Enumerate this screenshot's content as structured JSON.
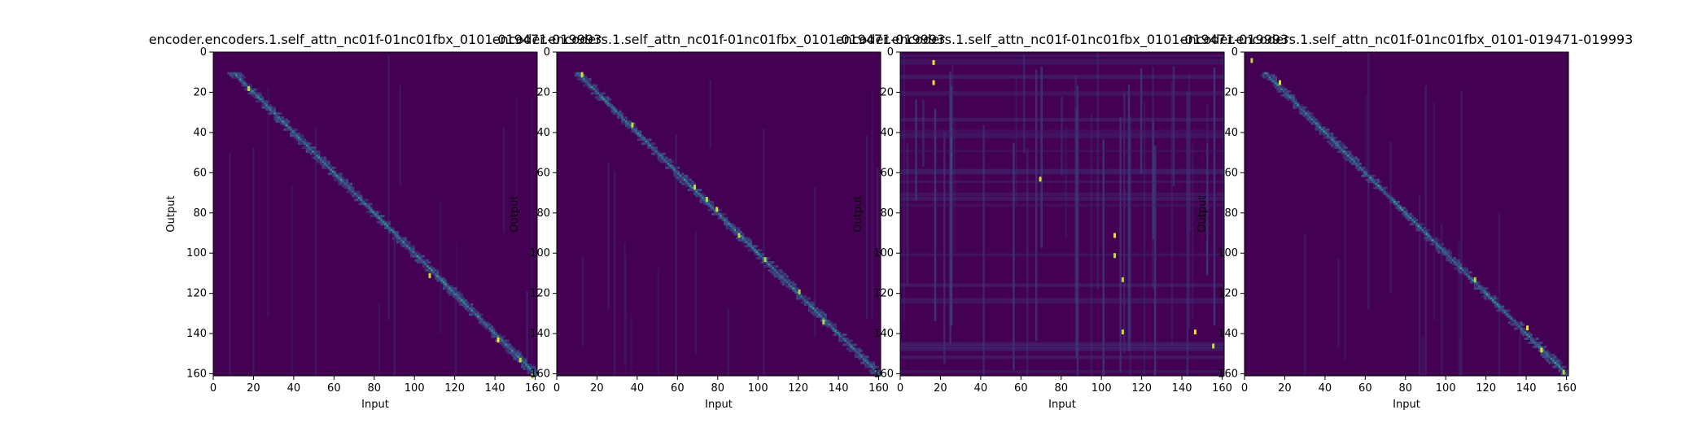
{
  "colors": {
    "colormap": "viridis",
    "background_low": "#440154",
    "mid": "#21918c",
    "high": "#fde725"
  },
  "chart_data": [
    {
      "type": "heatmap",
      "title": "encoder.encoders.1.self_attn_nc01f-01nc01fbx_0101-019471-019993",
      "xlabel": "Input",
      "ylabel": "Output",
      "xlim": [
        0,
        161
      ],
      "ylim": [
        161,
        0
      ],
      "x_ticks": [
        "0",
        "20",
        "40",
        "60",
        "80",
        "100",
        "120",
        "140",
        "160"
      ],
      "y_ticks": [
        "0",
        "20",
        "40",
        "60",
        "80",
        "100",
        "120",
        "140",
        "160"
      ],
      "pattern": "diagonal",
      "peaks": [
        [
          17,
          17
        ],
        [
          110,
          107
        ],
        [
          142,
          141
        ],
        [
          152,
          152
        ],
        [
          160,
          158
        ]
      ]
    },
    {
      "type": "heatmap",
      "title": "encoder.encoders.1.self_attn_nc01f-01nc01fbx_0101-019471-019993",
      "xlabel": "Input",
      "ylabel": "Output",
      "xlim": [
        0,
        161
      ],
      "ylim": [
        161,
        0
      ],
      "x_ticks": [
        "0",
        "20",
        "40",
        "60",
        "80",
        "100",
        "120",
        "140",
        "160"
      ],
      "y_ticks": [
        "0",
        "20",
        "40",
        "60",
        "80",
        "100",
        "120",
        "140",
        "160"
      ],
      "pattern": "diagonal",
      "peaks": [
        [
          10,
          12
        ],
        [
          35,
          37
        ],
        [
          66,
          68
        ],
        [
          72,
          74
        ],
        [
          77,
          79
        ],
        [
          90,
          90
        ],
        [
          102,
          103
        ],
        [
          118,
          120
        ],
        [
          133,
          132
        ]
      ]
    },
    {
      "type": "heatmap",
      "title": "encoder.encoders.1.self_attn_nc01f-01nc01fbx_0101-019471-019993",
      "xlabel": "Input",
      "ylabel": "Output",
      "xlim": [
        0,
        161
      ],
      "ylim": [
        161,
        0
      ],
      "x_ticks": [
        "0",
        "20",
        "40",
        "60",
        "80",
        "100",
        "120",
        "140",
        "160"
      ],
      "y_ticks": [
        "0",
        "20",
        "40",
        "60",
        "80",
        "100",
        "120",
        "140",
        "160"
      ],
      "pattern": "diffuse",
      "peaks": [
        [
          14,
          16
        ],
        [
          4,
          16
        ],
        [
          62,
          69
        ],
        [
          90,
          106
        ],
        [
          100,
          106
        ],
        [
          112,
          110
        ],
        [
          138,
          110
        ],
        [
          138,
          146
        ],
        [
          145,
          155
        ]
      ]
    },
    {
      "type": "heatmap",
      "title": "encoder.encoders.1.self_attn_nc01f-01nc01fbx_0101-019471-019993",
      "xlabel": "Input",
      "ylabel": "Output",
      "xlim": [
        0,
        161
      ],
      "ylim": [
        161,
        0
      ],
      "x_ticks": [
        "0",
        "20",
        "40",
        "60",
        "80",
        "100",
        "120",
        "140",
        "160"
      ],
      "y_ticks": [
        "0",
        "20",
        "40",
        "60",
        "80",
        "100",
        "120",
        "140",
        "160"
      ],
      "pattern": "diagonal",
      "peaks": [
        [
          3,
          3
        ],
        [
          14,
          17
        ],
        [
          112,
          114
        ],
        [
          136,
          140
        ],
        [
          147,
          147
        ],
        [
          158,
          158
        ]
      ]
    }
  ]
}
